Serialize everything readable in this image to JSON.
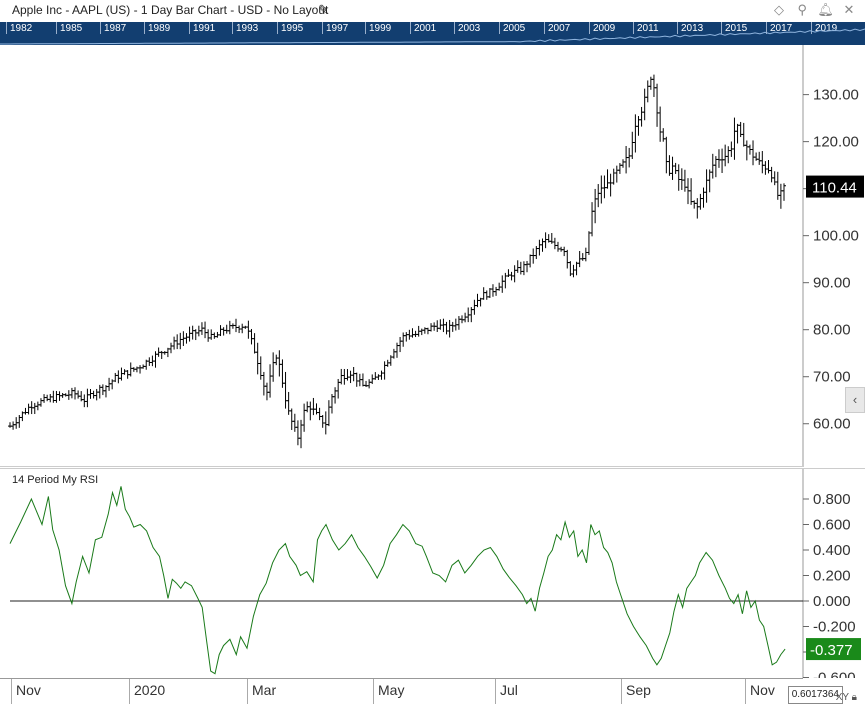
{
  "window": {
    "title": "Apple Inc - AAPL (US) - 1 Day Bar Chart - USD - No Layout",
    "toolbar_icons": [
      "diamond-icon",
      "pin-icon",
      "bell-icon",
      "close-icon"
    ]
  },
  "timeline": {
    "years": [
      "1982",
      "1985",
      "1987",
      "1989",
      "1991",
      "1993",
      "1995",
      "1997",
      "1999",
      "2001",
      "2003",
      "2005",
      "2007",
      "2009",
      "2011",
      "2013",
      "2015",
      "2017",
      "2019"
    ]
  },
  "main_axis": {
    "labels": [
      "130.00",
      "120.00",
      "110.00",
      "100.00",
      "90.00",
      "80.00",
      "70.00",
      "60.00"
    ],
    "last_price": "110.44",
    "last_price_color": "#000000"
  },
  "rsi_panel": {
    "title": "14 Period My RSI",
    "labels": [
      "0.800",
      "0.600",
      "0.400",
      "0.200",
      "0.000",
      "-0.200",
      "-0.400",
      "-0.600"
    ],
    "last_value": "-0.377",
    "last_value_color": "#1a8a1a",
    "line_color": "#1a7a1a"
  },
  "x_axis": {
    "labels": [
      "Nov",
      "2020",
      "Mar",
      "May",
      "Jul",
      "Sep",
      "Nov"
    ]
  },
  "readout": {
    "xy_value": "0.6017364",
    "xy_button": "XY"
  },
  "chart_data": [
    {
      "type": "ohlc",
      "series": [
        {
          "name": "AAPL"
        }
      ],
      "ylim": [
        53,
        140
      ],
      "x_range_days": [
        0,
        370
      ],
      "close_anchors": [
        [
          0,
          59.5
        ],
        [
          10,
          64
        ],
        [
          20,
          65.5
        ],
        [
          30,
          66.5
        ],
        [
          35,
          65
        ],
        [
          40,
          67
        ],
        [
          45,
          68
        ],
        [
          50,
          70
        ],
        [
          60,
          72
        ],
        [
          70,
          75
        ],
        [
          80,
          78
        ],
        [
          90,
          80
        ],
        [
          95,
          78
        ],
        [
          100,
          80
        ],
        [
          110,
          81
        ],
        [
          112,
          79
        ],
        [
          115,
          75
        ],
        [
          118,
          70
        ],
        [
          120,
          66
        ],
        [
          123,
          72
        ],
        [
          125,
          75
        ],
        [
          128,
          68
        ],
        [
          130,
          63
        ],
        [
          133,
          59
        ],
        [
          135,
          57
        ],
        [
          137,
          62
        ],
        [
          140,
          64
        ],
        [
          145,
          61
        ],
        [
          148,
          60
        ],
        [
          150,
          65
        ],
        [
          155,
          70
        ],
        [
          160,
          71
        ],
        [
          165,
          68
        ],
        [
          170,
          69
        ],
        [
          175,
          72
        ],
        [
          180,
          76
        ],
        [
          185,
          79
        ],
        [
          190,
          79
        ],
        [
          200,
          81
        ],
        [
          205,
          80
        ],
        [
          210,
          82
        ],
        [
          215,
          84
        ],
        [
          220,
          87
        ],
        [
          225,
          88
        ],
        [
          230,
          90
        ],
        [
          235,
          92
        ],
        [
          240,
          93
        ],
        [
          245,
          96
        ],
        [
          250,
          99
        ],
        [
          255,
          98
        ],
        [
          260,
          97
        ],
        [
          262,
          92
        ],
        [
          265,
          94
        ],
        [
          268,
          95
        ],
        [
          270,
          96
        ],
        [
          272,
          104
        ],
        [
          275,
          109
        ],
        [
          280,
          111
        ],
        [
          285,
          114
        ],
        [
          290,
          117
        ],
        [
          293,
          124
        ],
        [
          296,
          127
        ],
        [
          298,
          130
        ],
        [
          300,
          134
        ],
        [
          302,
          131
        ],
        [
          304,
          123
        ],
        [
          306,
          120
        ],
        [
          308,
          113
        ],
        [
          310,
          115
        ],
        [
          313,
          112
        ],
        [
          316,
          111
        ],
        [
          319,
          107
        ],
        [
          322,
          106
        ],
        [
          325,
          110
        ],
        [
          330,
          116
        ],
        [
          335,
          117
        ],
        [
          338,
          119
        ],
        [
          340,
          124
        ],
        [
          342,
          121
        ],
        [
          345,
          119
        ],
        [
          348,
          117
        ],
        [
          352,
          115
        ],
        [
          356,
          114
        ],
        [
          358,
          111
        ],
        [
          360,
          108
        ],
        [
          363,
          110.44
        ]
      ]
    },
    {
      "type": "line",
      "series": [
        {
          "name": "14 Period My RSI"
        }
      ],
      "ylim": [
        -0.65,
        0.95
      ],
      "points": [
        [
          0,
          0.45
        ],
        [
          5,
          0.62
        ],
        [
          10,
          0.8
        ],
        [
          15,
          0.6
        ],
        [
          18,
          0.82
        ],
        [
          20,
          0.56
        ],
        [
          23,
          0.4
        ],
        [
          26,
          0.12
        ],
        [
          29,
          -0.02
        ],
        [
          31,
          0.15
        ],
        [
          34,
          0.35
        ],
        [
          37,
          0.22
        ],
        [
          40,
          0.48
        ],
        [
          43,
          0.5
        ],
        [
          46,
          0.68
        ],
        [
          48,
          0.85
        ],
        [
          50,
          0.75
        ],
        [
          52,
          0.9
        ],
        [
          54,
          0.72
        ],
        [
          56,
          0.66
        ],
        [
          58,
          0.58
        ],
        [
          61,
          0.6
        ],
        [
          64,
          0.55
        ],
        [
          67,
          0.42
        ],
        [
          70,
          0.35
        ],
        [
          72,
          0.2
        ],
        [
          74,
          0.02
        ],
        [
          76,
          0.17
        ],
        [
          78,
          0.14
        ],
        [
          80,
          0.1
        ],
        [
          82,
          0.15
        ],
        [
          85,
          0.12
        ],
        [
          88,
          0.02
        ],
        [
          90,
          -0.05
        ],
        [
          92,
          -0.3
        ],
        [
          94,
          -0.55
        ],
        [
          96,
          -0.57
        ],
        [
          98,
          -0.42
        ],
        [
          100,
          -0.35
        ],
        [
          103,
          -0.3
        ],
        [
          106,
          -0.42
        ],
        [
          108,
          -0.28
        ],
        [
          111,
          -0.37
        ],
        [
          114,
          -0.12
        ],
        [
          117,
          0.05
        ],
        [
          120,
          0.14
        ],
        [
          123,
          0.3
        ],
        [
          126,
          0.4
        ],
        [
          129,
          0.45
        ],
        [
          131,
          0.35
        ],
        [
          134,
          0.28
        ],
        [
          136,
          0.2
        ],
        [
          139,
          0.23
        ],
        [
          142,
          0.15
        ],
        [
          144,
          0.48
        ],
        [
          146,
          0.55
        ],
        [
          148,
          0.6
        ],
        [
          151,
          0.48
        ],
        [
          154,
          0.4
        ],
        [
          157,
          0.45
        ],
        [
          160,
          0.52
        ],
        [
          163,
          0.42
        ],
        [
          166,
          0.35
        ],
        [
          169,
          0.27
        ],
        [
          172,
          0.18
        ],
        [
          175,
          0.28
        ],
        [
          178,
          0.45
        ],
        [
          181,
          0.52
        ],
        [
          184,
          0.6
        ],
        [
          187,
          0.55
        ],
        [
          190,
          0.45
        ],
        [
          193,
          0.43
        ],
        [
          195,
          0.35
        ],
        [
          198,
          0.22
        ],
        [
          201,
          0.2
        ],
        [
          204,
          0.15
        ],
        [
          207,
          0.28
        ],
        [
          210,
          0.32
        ],
        [
          213,
          0.22
        ],
        [
          216,
          0.28
        ],
        [
          219,
          0.35
        ],
        [
          222,
          0.4
        ],
        [
          225,
          0.42
        ],
        [
          228,
          0.35
        ],
        [
          231,
          0.25
        ],
        [
          234,
          0.18
        ],
        [
          237,
          0.12
        ],
        [
          240,
          0.05
        ],
        [
          242,
          -0.02
        ],
        [
          244,
          0.02
        ],
        [
          246,
          -0.08
        ],
        [
          248,
          0.1
        ],
        [
          250,
          0.22
        ],
        [
          252,
          0.35
        ],
        [
          254,
          0.4
        ],
        [
          256,
          0.52
        ],
        [
          258,
          0.48
        ],
        [
          260,
          0.62
        ],
        [
          262,
          0.5
        ],
        [
          264,
          0.55
        ],
        [
          266,
          0.35
        ],
        [
          268,
          0.4
        ],
        [
          270,
          0.3
        ],
        [
          272,
          0.6
        ],
        [
          274,
          0.52
        ],
        [
          276,
          0.55
        ],
        [
          278,
          0.42
        ],
        [
          280,
          0.38
        ],
        [
          282,
          0.3
        ],
        [
          284,
          0.15
        ],
        [
          286,
          0.05
        ],
        [
          289,
          -0.1
        ],
        [
          292,
          -0.2
        ],
        [
          295,
          -0.28
        ],
        [
          298,
          -0.35
        ],
        [
          301,
          -0.45
        ],
        [
          303,
          -0.5
        ],
        [
          305,
          -0.45
        ],
        [
          307,
          -0.35
        ],
        [
          309,
          -0.25
        ],
        [
          311,
          -0.08
        ],
        [
          313,
          0.05
        ],
        [
          315,
          -0.05
        ],
        [
          317,
          0.1
        ],
        [
          319,
          0.15
        ],
        [
          321,
          0.2
        ],
        [
          323,
          0.3
        ],
        [
          326,
          0.38
        ],
        [
          329,
          0.32
        ],
        [
          332,
          0.2
        ],
        [
          335,
          0.1
        ],
        [
          337,
          0.02
        ],
        [
          339,
          -0.02
        ],
        [
          341,
          0.05
        ],
        [
          343,
          -0.1
        ],
        [
          345,
          0.08
        ],
        [
          347,
          -0.05
        ],
        [
          349,
          0.0
        ],
        [
          351,
          -0.15
        ],
        [
          353,
          -0.2
        ],
        [
          355,
          -0.35
        ],
        [
          357,
          -0.5
        ],
        [
          359,
          -0.48
        ],
        [
          361,
          -0.42
        ],
        [
          363,
          -0.377
        ]
      ]
    }
  ]
}
